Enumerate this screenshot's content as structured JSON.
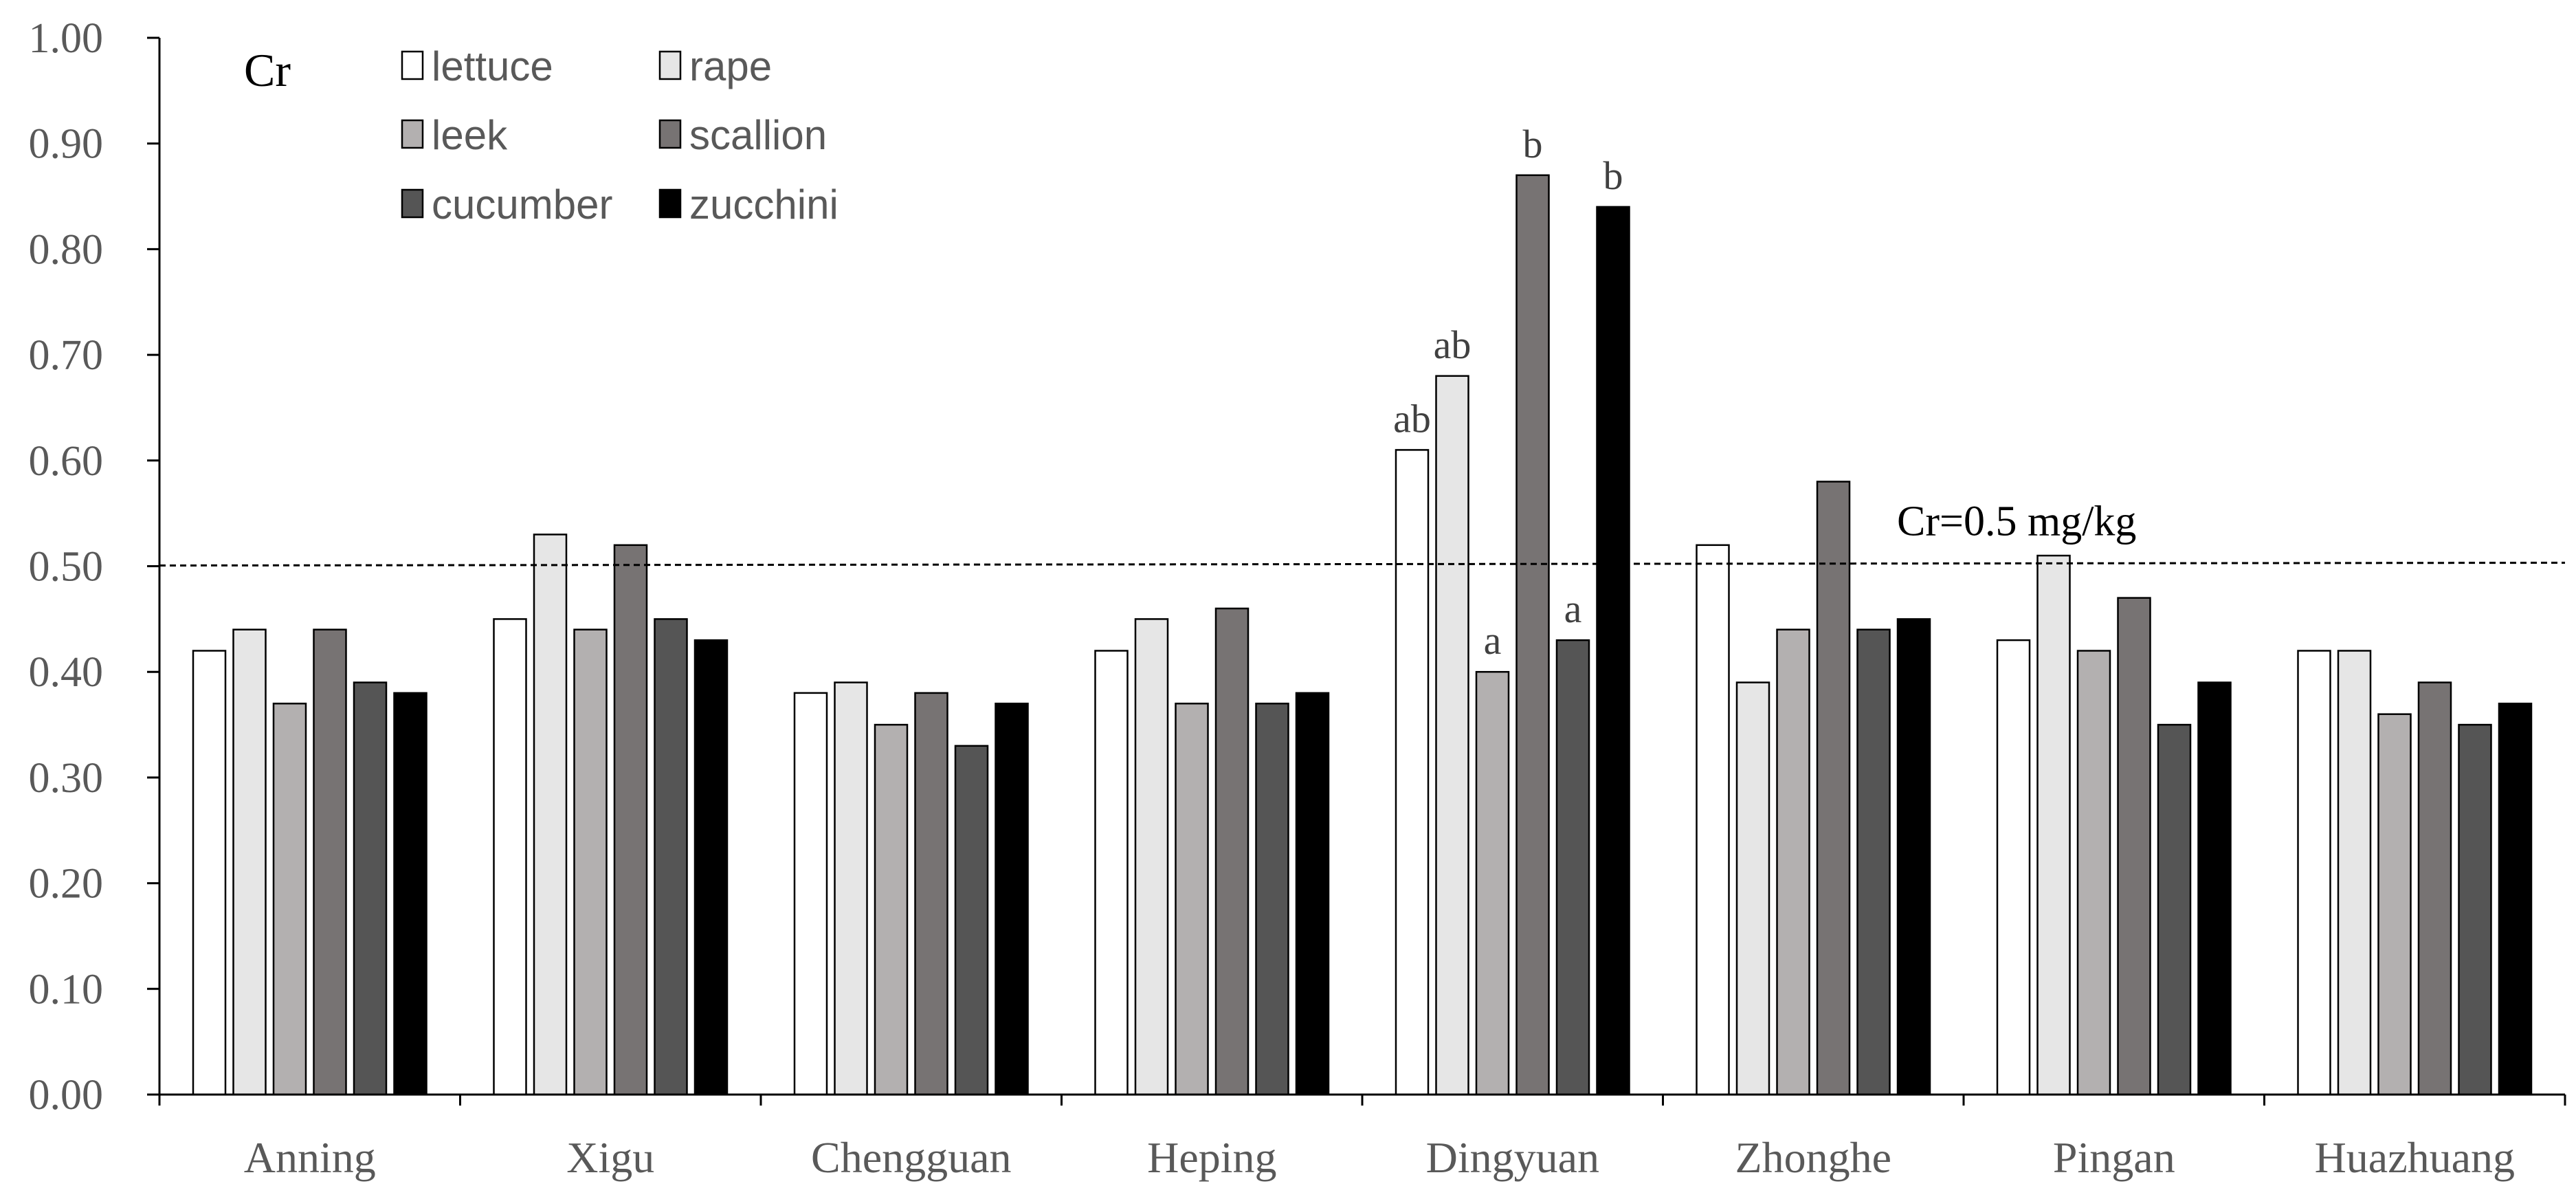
{
  "chart_data": {
    "type": "bar",
    "panel_label": "Cr",
    "categories": [
      "Anning",
      "Xigu",
      "Chengguan",
      "Heping",
      "Dingyuan",
      "Zhonghe",
      "Pingan",
      "Huazhuang"
    ],
    "y_ticks": [
      "0.00",
      "0.10",
      "0.20",
      "0.30",
      "0.40",
      "0.50",
      "0.60",
      "0.70",
      "0.80",
      "0.90",
      "1.00"
    ],
    "ylim": [
      0,
      1.0
    ],
    "grid": false,
    "legend_position": "top-left",
    "series": [
      {
        "name": "lettuce",
        "color": "#ffffff",
        "values": [
          0.42,
          0.45,
          0.38,
          0.42,
          0.61,
          0.52,
          0.43,
          0.42
        ]
      },
      {
        "name": "rape",
        "color": "#e6e6e6",
        "values": [
          0.44,
          0.53,
          0.39,
          0.45,
          0.68,
          0.39,
          0.51,
          0.42
        ]
      },
      {
        "name": "leek",
        "color": "#b3b0b0",
        "values": [
          0.37,
          0.44,
          0.35,
          0.37,
          0.4,
          0.44,
          0.42,
          0.36
        ]
      },
      {
        "name": "scallion",
        "color": "#777373",
        "values": [
          0.44,
          0.52,
          0.38,
          0.46,
          0.87,
          0.58,
          0.47,
          0.39
        ]
      },
      {
        "name": "cucumber",
        "color": "#555555",
        "values": [
          0.39,
          0.45,
          0.33,
          0.37,
          0.43,
          0.44,
          0.35,
          0.35
        ]
      },
      {
        "name": "zucchini",
        "color": "#000000",
        "values": [
          0.38,
          0.43,
          0.37,
          0.38,
          0.84,
          0.45,
          0.39,
          0.37
        ]
      }
    ],
    "reference_line": {
      "value": 0.5,
      "label": "Cr=0.5 mg/kg"
    },
    "annotations": [
      {
        "category": "Dingyuan",
        "series": "lettuce",
        "text": "ab"
      },
      {
        "category": "Dingyuan",
        "series": "rape",
        "text": "ab"
      },
      {
        "category": "Dingyuan",
        "series": "leek",
        "text": "a"
      },
      {
        "category": "Dingyuan",
        "series": "scallion",
        "text": "b"
      },
      {
        "category": "Dingyuan",
        "series": "cucumber",
        "text": "a"
      },
      {
        "category": "Dingyuan",
        "series": "zucchini",
        "text": "b"
      }
    ]
  }
}
